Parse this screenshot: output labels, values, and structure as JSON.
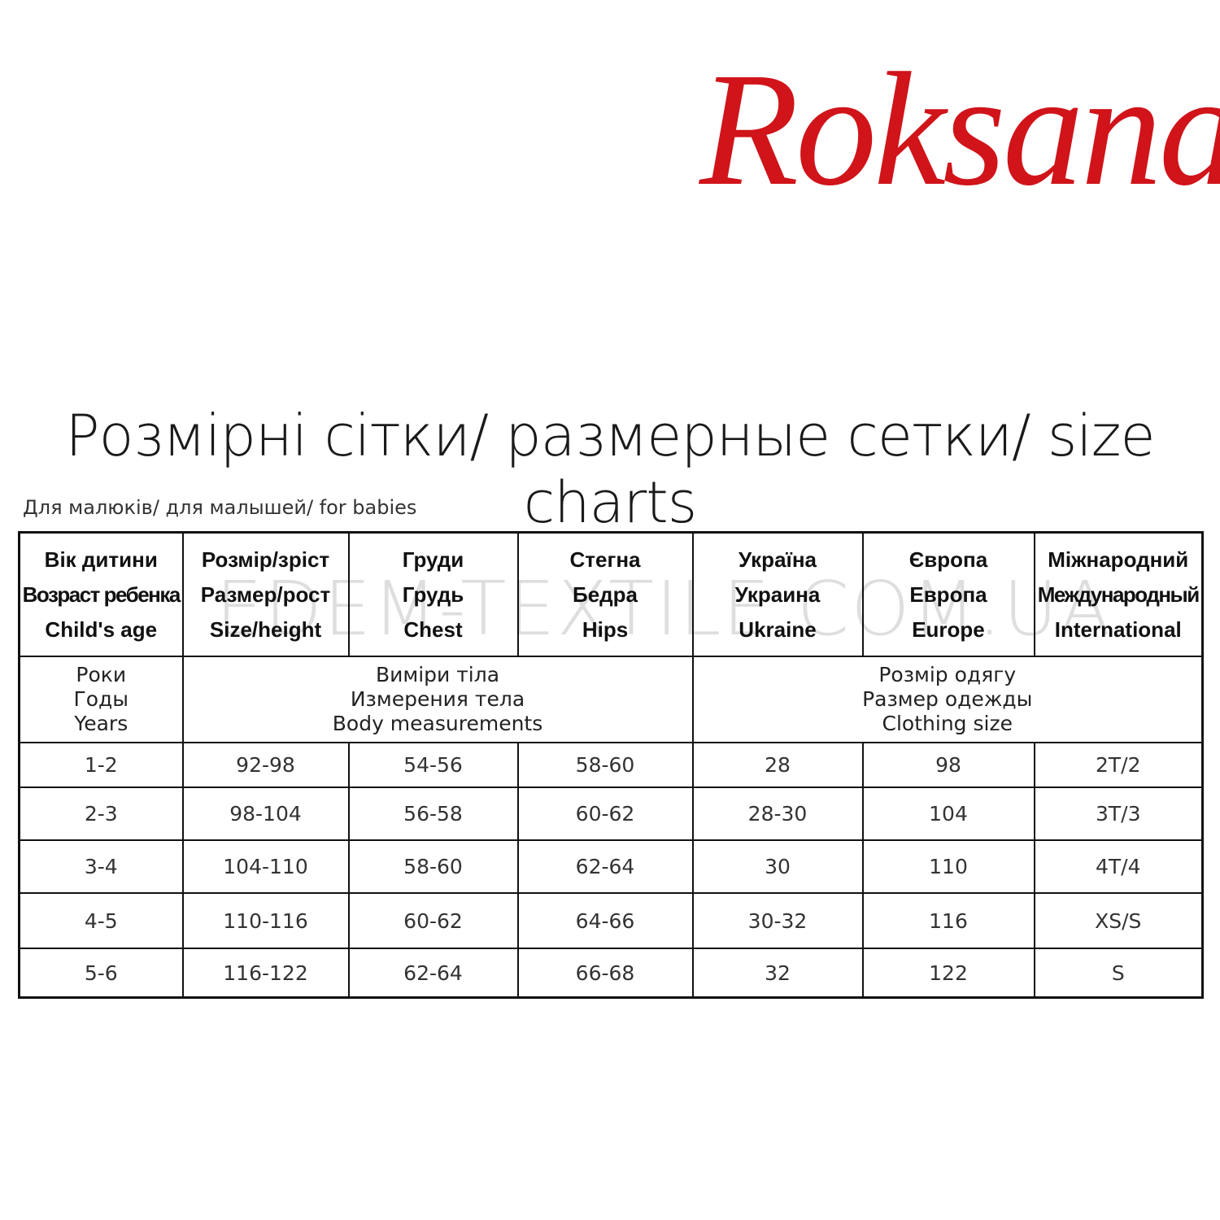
{
  "logo": {
    "text": "Roksana",
    "color": "#d0141a"
  },
  "title": "Розмірні сітки/ размерные сетки/ size charts",
  "subtitle": "Для малюків/ для малышей/ for babies",
  "watermark": "EDEM-TEXTILE.COM.UA",
  "table": {
    "headers": [
      [
        "Вік дитини",
        "Возраст ребенка",
        "Child's age"
      ],
      [
        "Розмір/зріст",
        "Размер/рост",
        "Size/height"
      ],
      [
        "Груди",
        "Грудь",
        "Chest"
      ],
      [
        "Стегна",
        "Бедра",
        "Hips"
      ],
      [
        "Україна",
        "Украина",
        "Ukraine"
      ],
      [
        "Європа",
        "Европа",
        "Europe"
      ],
      [
        "Міжнародний",
        "Международный",
        "International"
      ]
    ],
    "subheaders": {
      "years": [
        "Роки",
        "Годы",
        "Years"
      ],
      "body": [
        "Виміри тіла",
        "Измерения тела",
        "Body measurements"
      ],
      "clothing": [
        "Розмір одягу",
        "Размер одежды",
        "Clothing size"
      ]
    },
    "rows": [
      [
        "1-2",
        "92-98",
        "54-56",
        "58-60",
        "28",
        "98",
        "2T/2"
      ],
      [
        "2-3",
        "98-104",
        "56-58",
        "60-62",
        "28-30",
        "104",
        "3T/3"
      ],
      [
        "3-4",
        "104-110",
        "58-60",
        "62-64",
        "30",
        "110",
        "4T/4"
      ],
      [
        "4-5",
        "110-116",
        "60-62",
        "64-66",
        "30-32",
        "116",
        "XS/S"
      ],
      [
        "5-6",
        "116-122",
        "62-64",
        "66-68",
        "32",
        "122",
        "S"
      ]
    ]
  }
}
